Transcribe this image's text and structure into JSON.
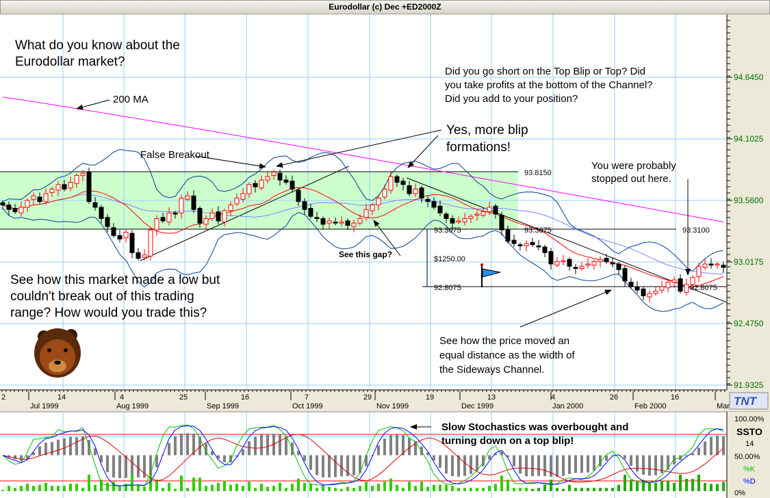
{
  "window": {
    "title": "Eurodollar (c) Dec +ED2000Z"
  },
  "annotations": {
    "question1": "What do you know about the",
    "question2": "Eurodollar market?",
    "ma_label": "200 MA",
    "short1": "Did you go short on the Top Blip or Top?  Did",
    "short2": "you take profits at the bottom of the Channel?",
    "short3": "Did you add to your position?",
    "blip1": "Yes, more blip",
    "blip2": "formations!",
    "false_breakout": "False Breakout",
    "gap": "See this gap?",
    "stopped1": "You were probably",
    "stopped2": "stopped out here.",
    "low1": "See how this market made a low but",
    "low2": "couldn't break out of this trading",
    "low3": "range? How would you trade this?",
    "equal1": "See how the price moved an",
    "equal2": "equal distance as the width of",
    "equal3": "the Sideways Channel.",
    "stoch1": "Slow Stochastics was overbought and",
    "stoch2": "turning down on a top blip!",
    "lvl_top": "93.8150",
    "lvl_bottom_a": "93.3075",
    "lvl_bottom_b": "93.3075",
    "lvl_right": "93.3100",
    "lvl_dollar": "$1250.00",
    "lvl_target_a": "92.8075",
    "lvl_target_b": "92.8075"
  },
  "y_axis": [
    "94.6450",
    "94.1025",
    "93.5600",
    "93.0175",
    "92.4750",
    "91.9325"
  ],
  "x_axis": {
    "days": [
      "2",
      "14",
      "4",
      "25",
      "16",
      "7",
      "29",
      "19",
      "13",
      "4",
      "26",
      "16"
    ],
    "months": [
      "Jul 1999",
      "Aug 1999",
      "Sep 1999",
      "Oct 1999",
      "Nov 1999",
      "Dec 1999",
      "Jan 2000",
      "Feb 2000",
      "Mar"
    ]
  },
  "indicator": {
    "top": "100.00%",
    "name": "SSTO",
    "period": "14",
    "mid": "50.00%",
    "k": "%K",
    "d": "%D",
    "bottom": "0%"
  },
  "logo": "TNT",
  "colors": {
    "up": "#ff0000",
    "down": "#000000",
    "channel": "#ccffcc",
    "ma200": "#ff00ff",
    "bands": "#003f8f",
    "ma_short": "#ff0000",
    "ma_long": "#8080ff",
    "k": "#00c000",
    "d": "#0000ff",
    "grid": "#99ccff",
    "axis_text": "#007000"
  },
  "chart_data": {
    "type": "candlestick",
    "title": "Eurodollar (c) Dec +ED2000Z",
    "ylim": [
      91.9325,
      94.645
    ],
    "ma200_range": [
      94.47,
      93.37
    ],
    "channel": [
      93.3075,
      93.815
    ],
    "closes": [
      93.52,
      93.48,
      93.46,
      93.5,
      93.56,
      93.6,
      93.55,
      93.62,
      93.66,
      93.7,
      93.66,
      93.72,
      93.78,
      93.8,
      93.55,
      93.5,
      93.4,
      93.33,
      93.25,
      93.22,
      93.28,
      93.1,
      93.05,
      93.08,
      93.3,
      93.4,
      93.38,
      93.45,
      93.44,
      93.58,
      93.6,
      93.48,
      93.36,
      93.4,
      93.45,
      93.38,
      93.47,
      93.52,
      93.58,
      93.62,
      93.7,
      93.68,
      93.74,
      93.77,
      93.81,
      93.74,
      93.72,
      93.66,
      93.55,
      93.48,
      93.42,
      93.4,
      93.35,
      93.38,
      93.36,
      93.37,
      93.34,
      93.36,
      93.4,
      93.48,
      93.52,
      93.58,
      93.66,
      93.77,
      93.72,
      93.7,
      93.62,
      93.66,
      93.58,
      93.55,
      93.5,
      93.45,
      93.4,
      93.36,
      93.38,
      93.4,
      93.42,
      93.44,
      93.46,
      93.5,
      93.44,
      93.3,
      93.2,
      93.18,
      93.16,
      93.18,
      93.17,
      93.15,
      93.1,
      93.0,
      93.02,
      93.03,
      92.98,
      92.96,
      92.98,
      93.0,
      93.02,
      93.04,
      93.02,
      93.0,
      92.95,
      92.85,
      92.8,
      92.77,
      92.72,
      92.74,
      92.76,
      92.8,
      92.84,
      92.86,
      92.76,
      92.82,
      92.88,
      92.98,
      93.0,
      92.99,
      93.0,
      92.97
    ]
  }
}
